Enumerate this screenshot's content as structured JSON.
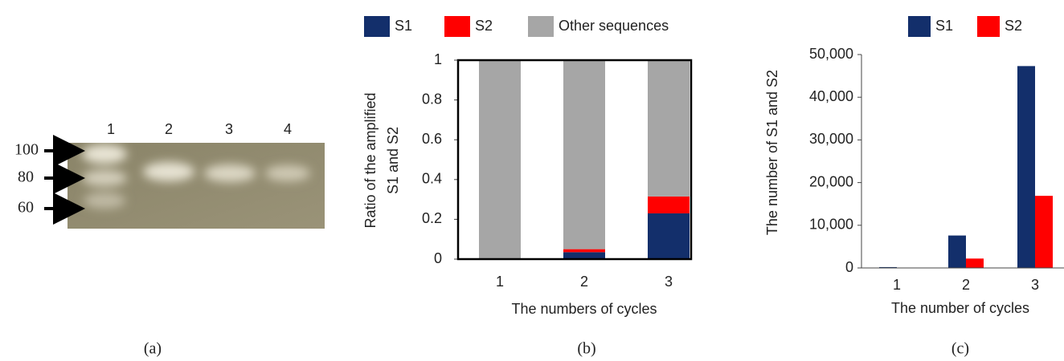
{
  "gel": {
    "lanes": [
      "1",
      "2",
      "3",
      "4"
    ],
    "markers": [
      "100",
      "80",
      "60"
    ],
    "caption": "(a)"
  },
  "chart_data": [
    {
      "type": "stacked_bar",
      "caption": "(b)",
      "categories": [
        "1",
        "2",
        "3"
      ],
      "series": [
        {
          "name": "S1",
          "color": "#132f6b",
          "values": [
            0,
            0.035,
            0.23
          ]
        },
        {
          "name": "S2",
          "color": "#ff0000",
          "values": [
            0,
            0.015,
            0.085
          ]
        },
        {
          "name": "Other sequences",
          "color": "#a6a6a6",
          "values": [
            1,
            0.95,
            0.685
          ]
        }
      ],
      "ylim": [
        0,
        1
      ],
      "yticks": [
        0,
        0.2,
        0.4,
        0.6,
        0.8,
        1
      ],
      "ylabel": [
        "Ratio of the amplified",
        "S1 and S2"
      ],
      "xlabel": "The numbers of cycles",
      "legend": "top"
    },
    {
      "type": "bar",
      "caption": "(c)",
      "categories": [
        "1",
        "2",
        "3"
      ],
      "series": [
        {
          "name": "S1",
          "color": "#132f6b",
          "values": [
            200,
            7600,
            47300
          ]
        },
        {
          "name": "S2",
          "color": "#ff0000",
          "values": [
            0,
            2200,
            16900
          ]
        }
      ],
      "ylim": [
        0,
        50000
      ],
      "yticks": [
        0,
        {
          "value": 10000,
          "label": "10,000"
        },
        {
          "value": 20000,
          "label": "20,000"
        },
        {
          "value": 30000,
          "label": "30,000"
        },
        {
          "value": 40000,
          "label": "40,000"
        },
        {
          "value": 50000,
          "label": "50,000"
        }
      ],
      "ylabel": "The number of S1 and S2",
      "xlabel": "The number of cycles",
      "legend": "top"
    }
  ]
}
